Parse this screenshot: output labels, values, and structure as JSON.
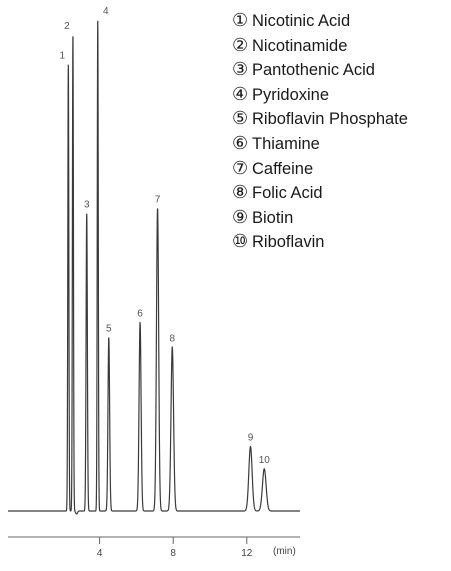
{
  "chart_data": {
    "type": "line",
    "title": "",
    "xlabel": "(min)",
    "ylabel": "",
    "xlim": [
      0,
      14
    ],
    "x_ticks": [
      4,
      8,
      12
    ],
    "x_tick_labels": [
      "4",
      "8",
      "12"
    ],
    "grid": false,
    "legend_position": "top-right",
    "baseline": 0,
    "peaks": [
      {
        "label": "1",
        "name": "Nicotinic Acid",
        "rt": 2.3,
        "height": 0.9,
        "width": 0.028
      },
      {
        "label": "2",
        "name": "Nicotinamide",
        "rt": 2.55,
        "height": 0.96,
        "width": 0.028
      },
      {
        "label": "3",
        "name": "Pantothenic Acid",
        "rt": 3.3,
        "height": 0.6,
        "width": 0.035
      },
      {
        "label": "4",
        "name": "Pyridoxine",
        "rt": 3.9,
        "height": 0.99,
        "width": 0.028
      },
      {
        "label": "5",
        "name": "Riboflavin Phosphate",
        "rt": 4.5,
        "height": 0.35,
        "width": 0.045
      },
      {
        "label": "6",
        "name": "Thiamine",
        "rt": 6.2,
        "height": 0.38,
        "width": 0.055
      },
      {
        "label": "7",
        "name": "Caffeine",
        "rt": 7.15,
        "height": 0.61,
        "width": 0.06
      },
      {
        "label": "8",
        "name": "Folic Acid",
        "rt": 7.95,
        "height": 0.33,
        "width": 0.07
      },
      {
        "label": "9",
        "name": "Biotin",
        "rt": 12.2,
        "height": 0.13,
        "width": 0.09
      },
      {
        "label": "10",
        "name": "Riboflavin",
        "rt": 12.95,
        "height": 0.085,
        "width": 0.1
      }
    ]
  },
  "legend": {
    "items": [
      {
        "num": "①",
        "name": "Nicotinic Acid"
      },
      {
        "num": "②",
        "name": "Nicotinamide"
      },
      {
        "num": "③",
        "name": "Pantothenic Acid"
      },
      {
        "num": "④",
        "name": "Pyridoxine"
      },
      {
        "num": "⑤",
        "name": "Riboflavin Phosphate"
      },
      {
        "num": "⑥",
        "name": "Thiamine"
      },
      {
        "num": "⑦",
        "name": "Caffeine"
      },
      {
        "num": "⑧",
        "name": "Folic Acid"
      },
      {
        "num": "⑨",
        "name": "Biotin"
      },
      {
        "num": "⑩",
        "name": "Riboflavin"
      }
    ]
  },
  "colors": {
    "trace": "#3a3a3a",
    "axis": "#666666",
    "text": "#1a1a1a"
  }
}
